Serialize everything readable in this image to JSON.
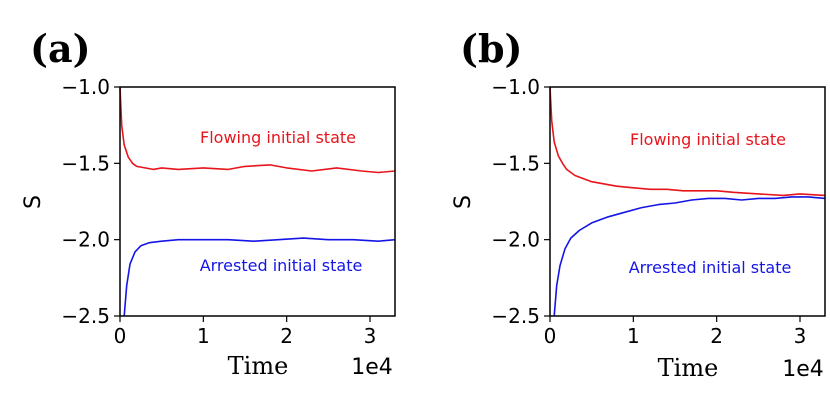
{
  "chart_data": [
    {
      "panel_label": "(a)",
      "type": "line",
      "xlabel": "Time",
      "ylabel": "S",
      "x_offset_text": "1e4",
      "xlim": [
        0,
        3.3
      ],
      "ylim": [
        -2.5,
        -1.0
      ],
      "xticks": [
        0,
        1,
        2,
        3
      ],
      "xtick_labels": [
        "0",
        "1",
        "2",
        "3"
      ],
      "yticks": [
        -2.5,
        -2.0,
        -1.5,
        -1.0
      ],
      "ytick_labels": [
        "−2.5",
        "−2.0",
        "−1.5",
        "−1.0"
      ],
      "series": [
        {
          "name": "Flowing initial state",
          "color": "#e8141c",
          "x": [
            0,
            0.02,
            0.05,
            0.1,
            0.15,
            0.2,
            0.3,
            0.4,
            0.5,
            0.7,
            1.0,
            1.3,
            1.5,
            1.8,
            2.0,
            2.3,
            2.6,
            2.9,
            3.1,
            3.3
          ],
          "y": [
            -1.0,
            -1.25,
            -1.38,
            -1.46,
            -1.5,
            -1.52,
            -1.53,
            -1.54,
            -1.53,
            -1.54,
            -1.53,
            -1.54,
            -1.52,
            -1.51,
            -1.53,
            -1.55,
            -1.53,
            -1.55,
            -1.56,
            -1.55
          ]
        },
        {
          "name": "Arrested initial state",
          "color": "#1515e6",
          "x": [
            0.05,
            0.08,
            0.12,
            0.18,
            0.25,
            0.35,
            0.5,
            0.7,
            1.0,
            1.3,
            1.6,
            1.9,
            2.2,
            2.5,
            2.8,
            3.1,
            3.3
          ],
          "y": [
            -2.5,
            -2.3,
            -2.16,
            -2.08,
            -2.04,
            -2.02,
            -2.01,
            -2.0,
            -2.0,
            -2.0,
            -2.01,
            -2.0,
            -1.99,
            -2.0,
            -2.0,
            -2.01,
            -2.0
          ]
        }
      ],
      "annotations": [
        {
          "text": "Flowing initial state",
          "color": "#e8141c"
        },
        {
          "text": "Arrested initial state",
          "color": "#1515e6"
        }
      ]
    },
    {
      "panel_label": "(b)",
      "type": "line",
      "xlabel": "Time",
      "ylabel": "S",
      "x_offset_text": "1e4",
      "xlim": [
        0,
        3.3
      ],
      "ylim": [
        -2.5,
        -1.0
      ],
      "xticks": [
        0,
        1,
        2,
        3
      ],
      "xtick_labels": [
        "0",
        "1",
        "2",
        "3"
      ],
      "yticks": [
        -2.5,
        -2.0,
        -1.5,
        -1.0
      ],
      "ytick_labels": [
        "−2.5",
        "−2.0",
        "−1.5",
        "−1.0"
      ],
      "series": [
        {
          "name": "Flowing initial state",
          "color": "#e8141c",
          "x": [
            0,
            0.02,
            0.05,
            0.1,
            0.15,
            0.2,
            0.3,
            0.4,
            0.5,
            0.6,
            0.8,
            1.0,
            1.2,
            1.4,
            1.6,
            1.8,
            2.0,
            2.2,
            2.5,
            2.8,
            3.0,
            3.3
          ],
          "y": [
            -1.0,
            -1.22,
            -1.36,
            -1.45,
            -1.5,
            -1.54,
            -1.58,
            -1.6,
            -1.62,
            -1.63,
            -1.65,
            -1.66,
            -1.67,
            -1.67,
            -1.68,
            -1.68,
            -1.68,
            -1.69,
            -1.7,
            -1.71,
            -1.7,
            -1.71
          ]
        },
        {
          "name": "Arrested initial state",
          "color": "#1515e6",
          "x": [
            0.05,
            0.08,
            0.12,
            0.18,
            0.25,
            0.35,
            0.5,
            0.7,
            0.9,
            1.1,
            1.3,
            1.5,
            1.7,
            1.9,
            2.1,
            2.3,
            2.5,
            2.7,
            2.9,
            3.1,
            3.3
          ],
          "y": [
            -2.5,
            -2.3,
            -2.17,
            -2.06,
            -1.99,
            -1.94,
            -1.89,
            -1.85,
            -1.82,
            -1.79,
            -1.77,
            -1.76,
            -1.74,
            -1.73,
            -1.73,
            -1.74,
            -1.73,
            -1.73,
            -1.72,
            -1.72,
            -1.73
          ]
        }
      ],
      "annotations": [
        {
          "text": "Flowing initial state",
          "color": "#e8141c"
        },
        {
          "text": "Arrested initial state",
          "color": "#1515e6"
        }
      ]
    }
  ]
}
